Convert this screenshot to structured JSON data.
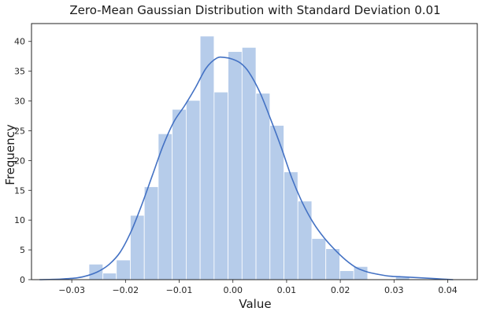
{
  "chart_data": {
    "type": "bar",
    "title": "Zero-Mean Gaussian Distribution with Standard Deviation 0.01",
    "xlabel": "Value",
    "ylabel": "Frequency",
    "xlim": [
      -0.0375,
      0.0455
    ],
    "ylim": [
      0,
      43
    ],
    "grid": false,
    "bar_color": "#aec7e8",
    "bar_opacity": 0.9,
    "line_color": "#4472c4",
    "x_ticks": [
      -0.03,
      -0.02,
      -0.01,
      0.0,
      0.01,
      0.02,
      0.03,
      0.04
    ],
    "x_tick_labels": [
      "−0.03",
      "−0.02",
      "−0.01",
      "0.00",
      "0.01",
      "0.02",
      "0.03",
      "0.04"
    ],
    "y_ticks": [
      0,
      5,
      10,
      15,
      20,
      25,
      30,
      35,
      40
    ],
    "y_tick_labels": [
      "0",
      "5",
      "10",
      "15",
      "20",
      "25",
      "30",
      "35",
      "40"
    ],
    "histogram": {
      "bin_edges": [
        -0.0268,
        -0.0242,
        -0.0217,
        -0.0191,
        -0.0165,
        -0.0139,
        -0.0113,
        -0.0087,
        -0.0061,
        -0.0035,
        -0.0009,
        0.0017,
        0.0043,
        0.0069,
        0.0095,
        0.0121,
        0.0147,
        0.0173,
        0.0199,
        0.0225,
        0.0251,
        0.0277,
        0.0303,
        0.0329,
        0.0355
      ],
      "counts": [
        2.6,
        1.1,
        3.3,
        10.8,
        15.6,
        24.5,
        28.6,
        30.1,
        40.9,
        31.5,
        38.3,
        39.0,
        31.3,
        25.9,
        18.1,
        13.2,
        6.9,
        5.2,
        1.5,
        2.2,
        0,
        0,
        0.5,
        0
      ]
    },
    "kde": {
      "x": [
        -0.036,
        -0.032,
        -0.029,
        -0.027,
        -0.025,
        -0.023,
        -0.021,
        -0.019,
        -0.017,
        -0.015,
        -0.013,
        -0.011,
        -0.009,
        -0.007,
        -0.005,
        -0.003,
        -0.0015,
        0.0,
        0.0015,
        0.003,
        0.005,
        0.007,
        0.009,
        0.011,
        0.013,
        0.015,
        0.017,
        0.019,
        0.021,
        0.023,
        0.025,
        0.027,
        0.029,
        0.031,
        0.033,
        0.035,
        0.037,
        0.039,
        0.041
      ],
      "y": [
        0.0,
        0.1,
        0.3,
        0.7,
        1.4,
        2.6,
        4.6,
        8.0,
        12.5,
        17.5,
        22.5,
        26.5,
        29.2,
        32.2,
        35.5,
        37.2,
        37.3,
        37.0,
        36.3,
        34.8,
        31.5,
        27.0,
        22.2,
        17.0,
        12.8,
        9.5,
        7.0,
        5.0,
        3.3,
        2.0,
        1.3,
        0.9,
        0.6,
        0.5,
        0.4,
        0.3,
        0.2,
        0.1,
        0.0
      ]
    }
  }
}
